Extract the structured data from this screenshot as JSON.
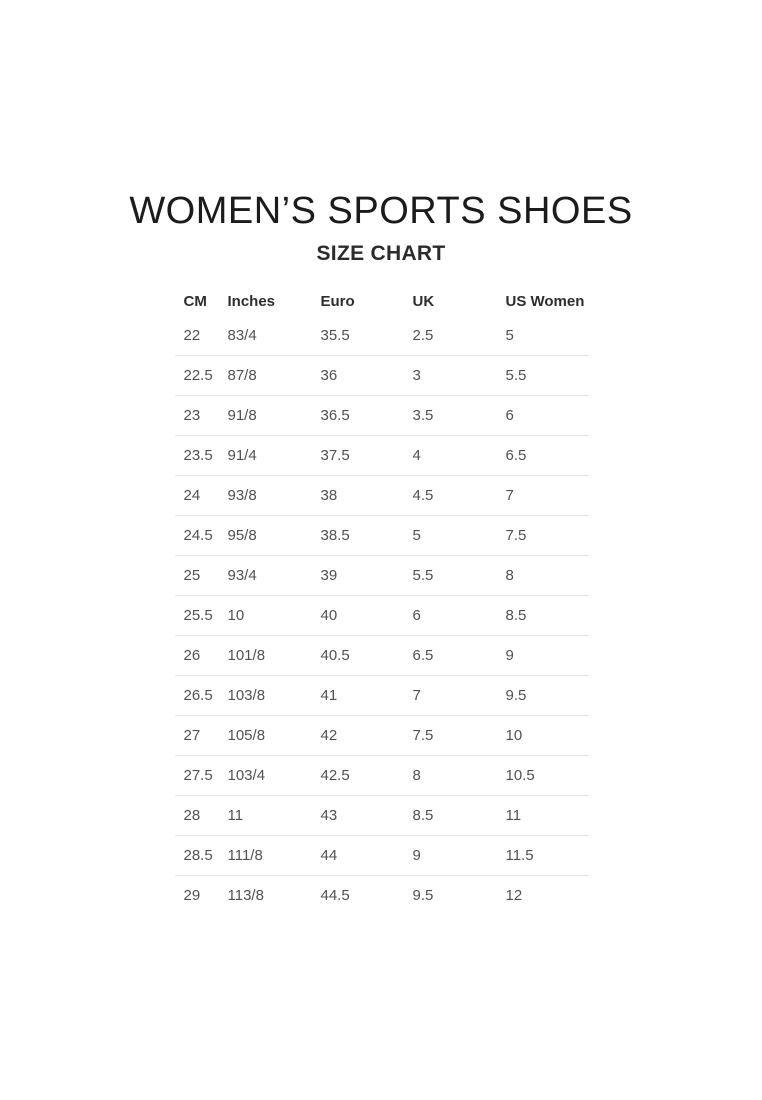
{
  "page": {
    "title": "WOMEN’S SPORTS SHOES",
    "subtitle": "SIZE CHART"
  },
  "chart_data": {
    "type": "table",
    "title": "WOMEN’S SPORTS SHOES",
    "subtitle": "SIZE CHART",
    "columns": [
      "CM",
      "Inches",
      "Euro",
      "UK",
      "US Women"
    ],
    "rows": [
      [
        "22",
        "83/4",
        "35.5",
        "2.5",
        "5"
      ],
      [
        "22.5",
        "87/8",
        "36",
        "3",
        "5.5"
      ],
      [
        "23",
        "91/8",
        "36.5",
        "3.5",
        "6"
      ],
      [
        "23.5",
        "91/4",
        "37.5",
        "4",
        "6.5"
      ],
      [
        "24",
        "93/8",
        "38",
        "4.5",
        "7"
      ],
      [
        "24.5",
        "95/8",
        "38.5",
        "5",
        "7.5"
      ],
      [
        "25",
        "93/4",
        "39",
        "5.5",
        "8"
      ],
      [
        "25.5",
        "10",
        "40",
        "6",
        "8.5"
      ],
      [
        "26",
        "101/8",
        "40.5",
        "6.5",
        "9"
      ],
      [
        "26.5",
        "103/8",
        "41",
        "7",
        "9.5"
      ],
      [
        "27",
        "105/8",
        "42",
        "7.5",
        "10"
      ],
      [
        "27.5",
        "103/4",
        "42.5",
        "8",
        "10.5"
      ],
      [
        "28",
        "11",
        "43",
        "8.5",
        "11"
      ],
      [
        "28.5",
        "111/8",
        "44",
        "9",
        "11.5"
      ],
      [
        "29",
        "113/8",
        "44.5",
        "9.5",
        "12"
      ]
    ]
  },
  "colors": {
    "background": "#ffffff",
    "title_text": "#1b1b1b",
    "header_text": "#2e2e2e",
    "cell_text": "#515151",
    "divider": "#e3e3e3"
  }
}
